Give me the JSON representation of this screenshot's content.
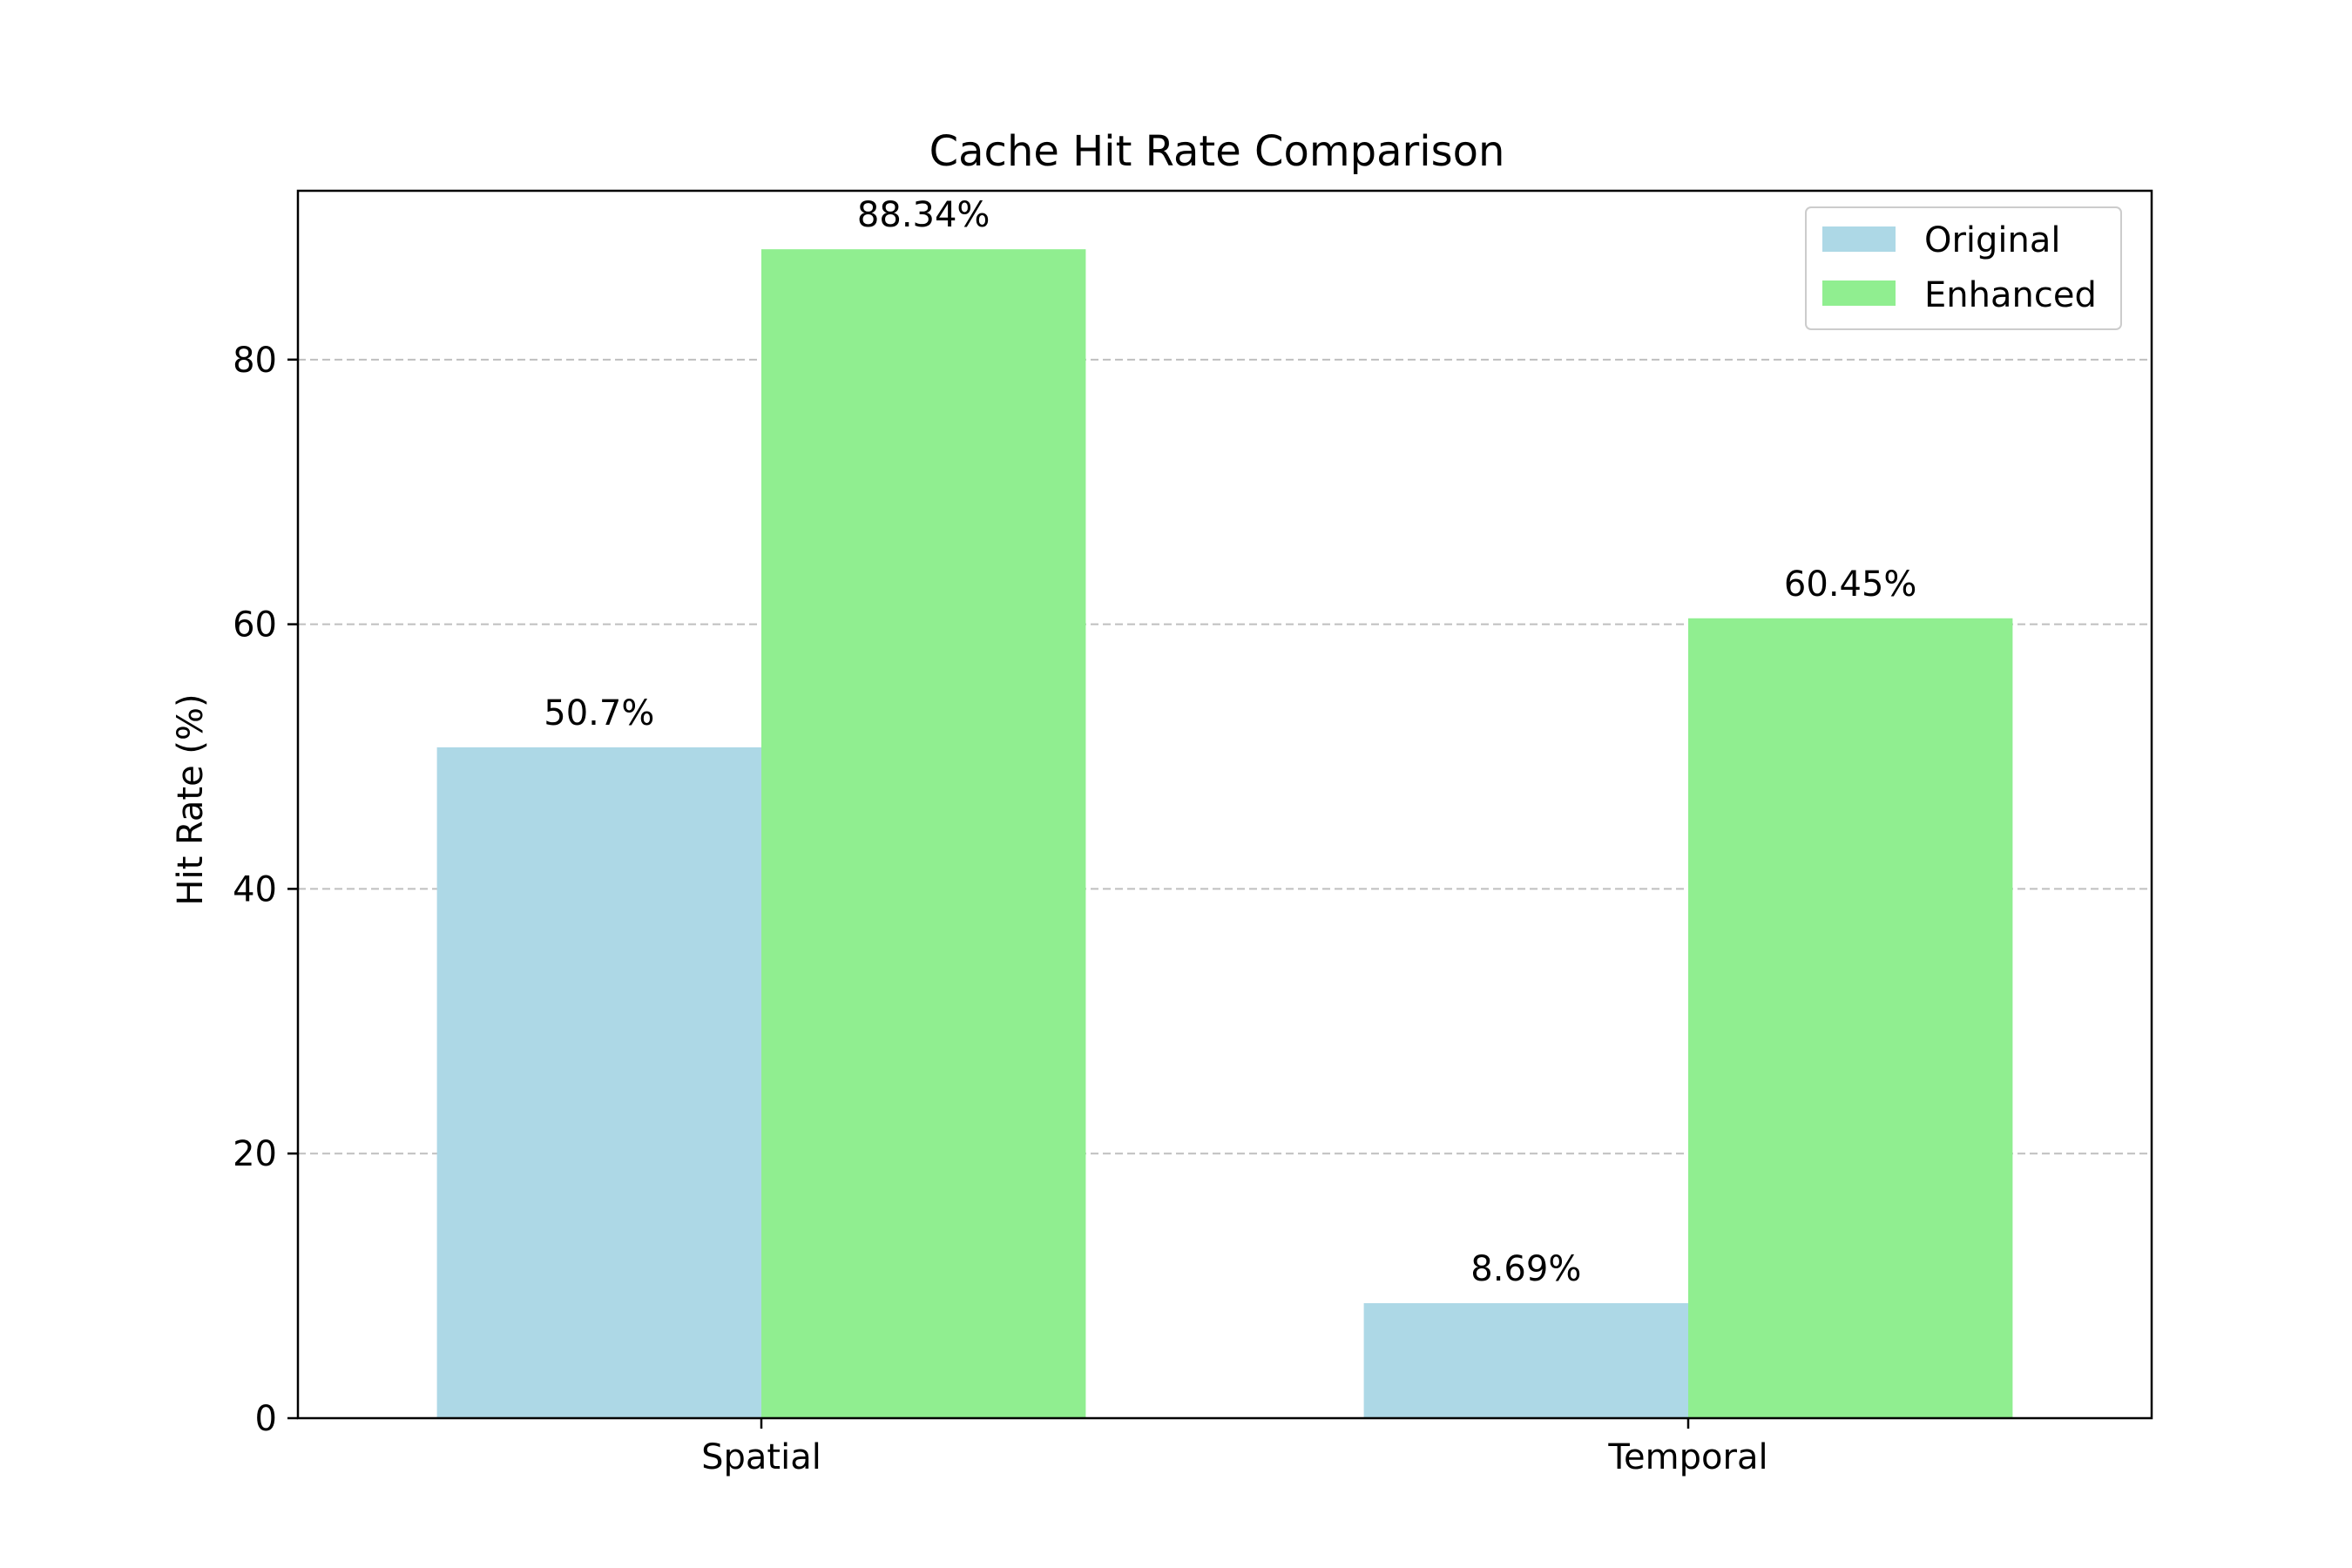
{
  "chart_data": {
    "type": "bar",
    "title": "Cache Hit Rate Comparison",
    "xlabel": "",
    "ylabel": "Hit Rate (%)",
    "categories": [
      "Spatial",
      "Temporal"
    ],
    "series": [
      {
        "name": "Original",
        "values": [
          50.7,
          8.69
        ],
        "labels": [
          "50.7%",
          "8.69%"
        ],
        "color": "#add8e6"
      },
      {
        "name": "Enhanced",
        "values": [
          88.34,
          60.45
        ],
        "labels": [
          "88.34%",
          "60.45%"
        ],
        "color": "#90ee90"
      }
    ],
    "ylim": [
      0,
      92.76
    ],
    "yticks": [
      0,
      20,
      40,
      60,
      80
    ],
    "grid": {
      "axis": "y",
      "style": "dashed",
      "color": "#bfbfbf"
    },
    "legend": {
      "position": "top-right"
    }
  }
}
